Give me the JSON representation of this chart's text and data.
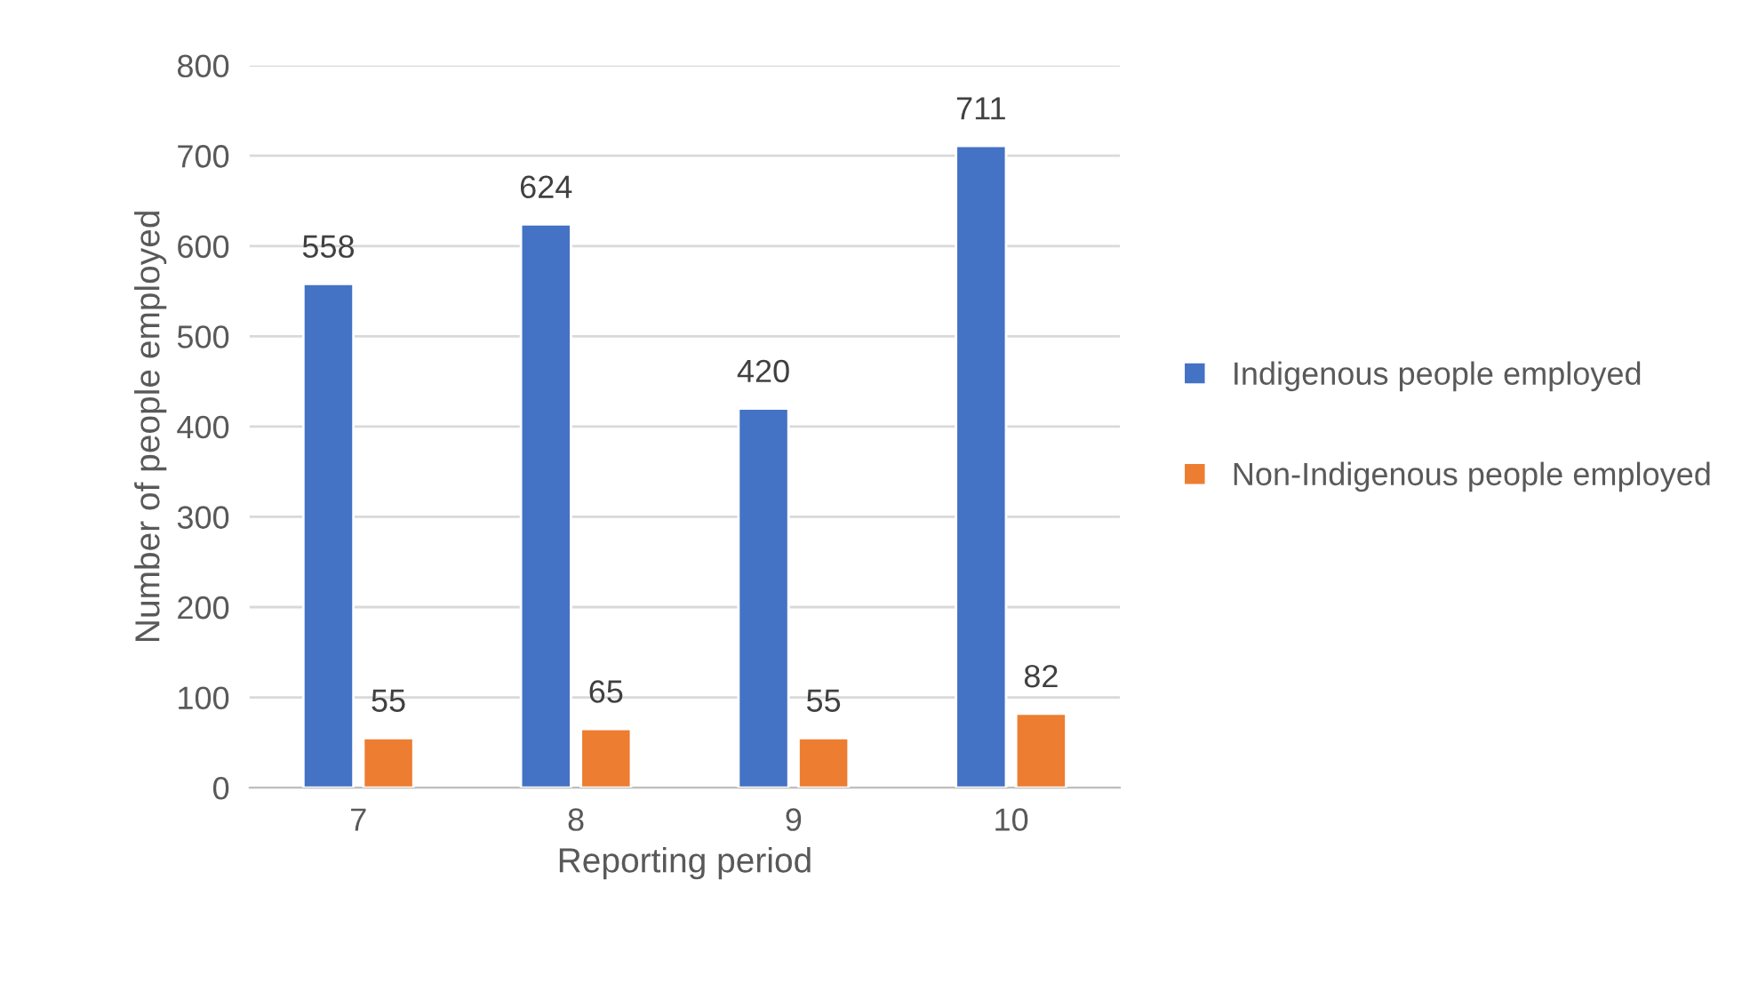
{
  "chart_data": {
    "type": "bar",
    "xlabel": "Reporting period",
    "ylabel": "Number of people employed",
    "categories": [
      "7",
      "8",
      "9",
      "10"
    ],
    "series": [
      {
        "name": "Indigenous people employed",
        "color": "#4472c4",
        "values": [
          558,
          624,
          420,
          711
        ]
      },
      {
        "name": "Non-Indigenous people employed",
        "color": "#ed7d31",
        "values": [
          55,
          65,
          55,
          82
        ]
      }
    ],
    "ylim": [
      0,
      800
    ],
    "yticks": [
      0,
      100,
      200,
      300,
      400,
      500,
      600,
      700,
      800
    ],
    "grid": "y",
    "legend": "right",
    "data_labels": true
  }
}
